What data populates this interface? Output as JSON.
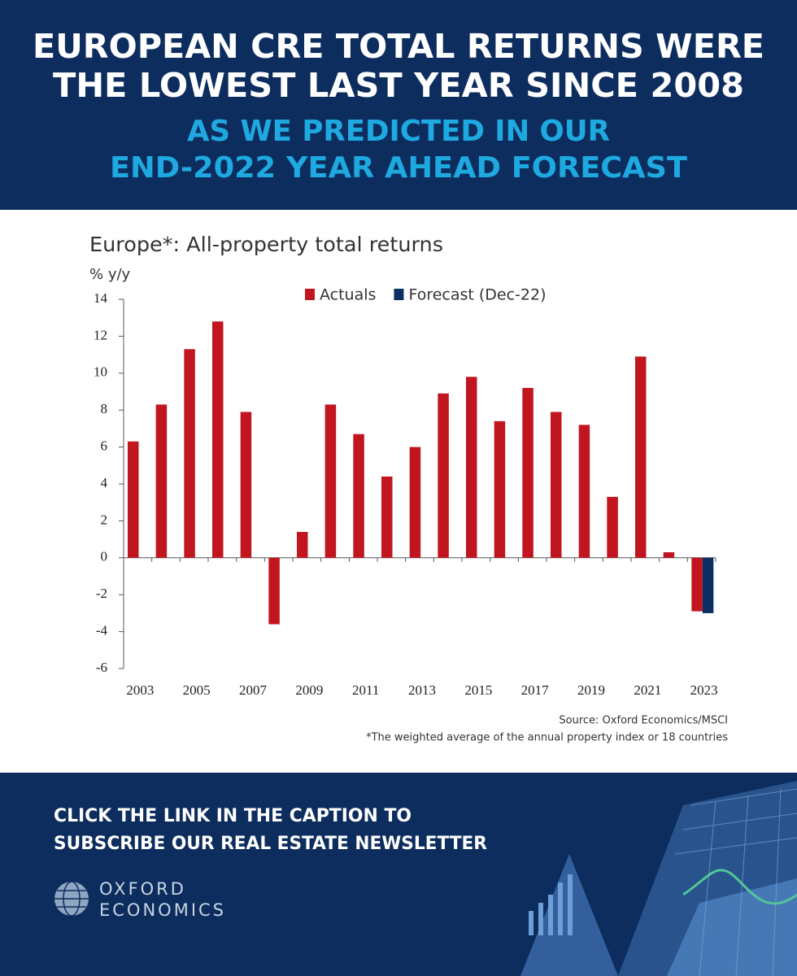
{
  "header": {
    "title_lines": [
      "EUROPEAN CRE TOTAL RETURNS WERE",
      "THE LOWEST LAST YEAR SINCE 2008"
    ],
    "subtitle_lines": [
      "AS WE PREDICTED IN OUR",
      "END-2022 YEAR AHEAD FORECAST"
    ]
  },
  "chart_data": {
    "type": "bar",
    "title": "Europe*: All-property total returns",
    "ylabel": "% y/y",
    "categories": [
      "2003",
      null,
      "2005",
      null,
      "2007",
      null,
      "2009",
      null,
      "2011",
      null,
      "2013",
      null,
      "2015",
      null,
      "2017",
      null,
      "2019",
      null,
      "2021",
      null,
      "2023"
    ],
    "series": [
      {
        "name": "Actuals",
        "color": "#c1161f",
        "values": [
          6.3,
          8.3,
          11.3,
          12.8,
          7.9,
          -3.6,
          1.4,
          8.3,
          6.7,
          4.4,
          6.0,
          8.9,
          9.8,
          7.4,
          9.2,
          7.9,
          7.2,
          3.3,
          10.9,
          0.3,
          -2.9
        ]
      },
      {
        "name": "Forecast (Dec-22)",
        "color": "#0b2f63",
        "values": [
          null,
          null,
          null,
          null,
          null,
          null,
          null,
          null,
          null,
          null,
          null,
          null,
          null,
          null,
          null,
          null,
          null,
          null,
          null,
          null,
          -3.0
        ]
      }
    ],
    "ylim": [
      -6,
      14
    ],
    "yticks": [
      -6,
      -4,
      -2,
      0,
      2,
      4,
      6,
      8,
      10,
      12,
      14
    ],
    "legend": "top",
    "grid": false,
    "source": "Source: Oxford Economics/MSCI",
    "footnote": "*The weighted average of the annual property index or 18 countries"
  },
  "footer": {
    "cta_lines": [
      "CLICK THE LINK IN THE CAPTION TO",
      "SUBSCRIBE OUR REAL ESTATE NEWSLETTER"
    ],
    "logo_lines": [
      "OXFORD",
      "ECONOMICS"
    ]
  }
}
